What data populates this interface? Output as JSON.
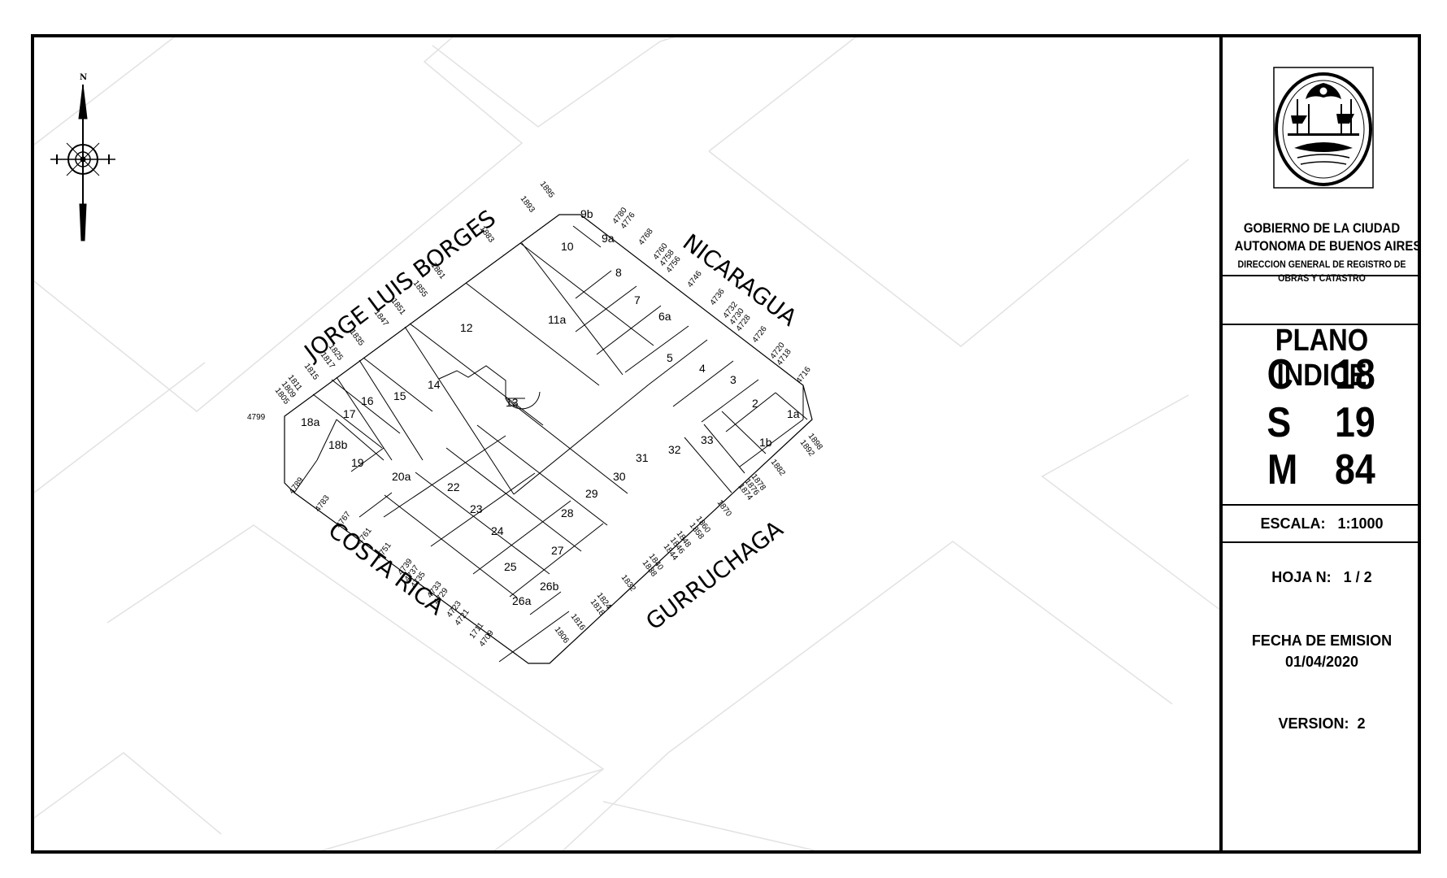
{
  "north_label": "N",
  "streets": {
    "north_west": "JORGE LUIS BORGES",
    "north_east": "NICARAGUA",
    "south_west": "COSTA RICA",
    "south_east": "GURRUCHAGA"
  },
  "lots": [
    "1a",
    "1b",
    "2",
    "3",
    "4",
    "5",
    "6a",
    "7",
    "8",
    "9a",
    "9b",
    "10",
    "11a",
    "12",
    "13",
    "14",
    "15",
    "16",
    "17",
    "18a",
    "18b",
    "19",
    "20a",
    "22",
    "23",
    "24",
    "25",
    "26a",
    "26b",
    "27",
    "28",
    "29",
    "30",
    "31",
    "32",
    "33"
  ],
  "door_numbers": {
    "borges": [
      "1895",
      "1893",
      "1883",
      "1861",
      "1855",
      "1851",
      "1847",
      "1835",
      "1825",
      "1817",
      "1815",
      "1811",
      "1809",
      "1805"
    ],
    "nicaragua": [
      "4780",
      "4776",
      "4768",
      "4760",
      "4758",
      "4756",
      "4746",
      "4736",
      "4732",
      "4730",
      "4728",
      "4726",
      "4720",
      "4718",
      "4716"
    ],
    "costa_rica": [
      "4799",
      "4789",
      "4783",
      "4767",
      "4761",
      "4751",
      "4739",
      "4737",
      "4735",
      "4733",
      "4729",
      "4723",
      "4721",
      "1711",
      "4709"
    ],
    "gurruchaga": [
      "1898",
      "1892",
      "1882",
      "1878",
      "1876",
      "1874",
      "1870",
      "1860",
      "1858",
      "1848",
      "1846",
      "1844",
      "1840",
      "1838",
      "1832",
      "1824",
      "1818",
      "1816",
      "1806"
    ]
  },
  "sidebar": {
    "gov_line1": "GOBIERNO DE LA CIUDAD",
    "gov_line2": "AUTONOMA DE BUENOS AIRES",
    "gov_line3": "DIRECCION GENERAL DE REGISTRO DE",
    "gov_line4": "OBRAS Y CATASTRO",
    "title": "PLANO INDICE",
    "c_label": "C",
    "c_value": "18",
    "s_label": "S",
    "s_value": "19",
    "m_label": "M",
    "m_value": "84",
    "scale_label": "ESCALA:",
    "scale_value": "1:1000",
    "sheet_label": "HOJA N:",
    "sheet_value": "1 / 2",
    "date_label": "FECHA DE EMISION",
    "date_value": "01/04/2020",
    "version_label": "VERSION:",
    "version_value": "2"
  },
  "colors": {
    "ink": "#000000",
    "ghost_lines": "#e2e2e2",
    "background": "#ffffff"
  }
}
